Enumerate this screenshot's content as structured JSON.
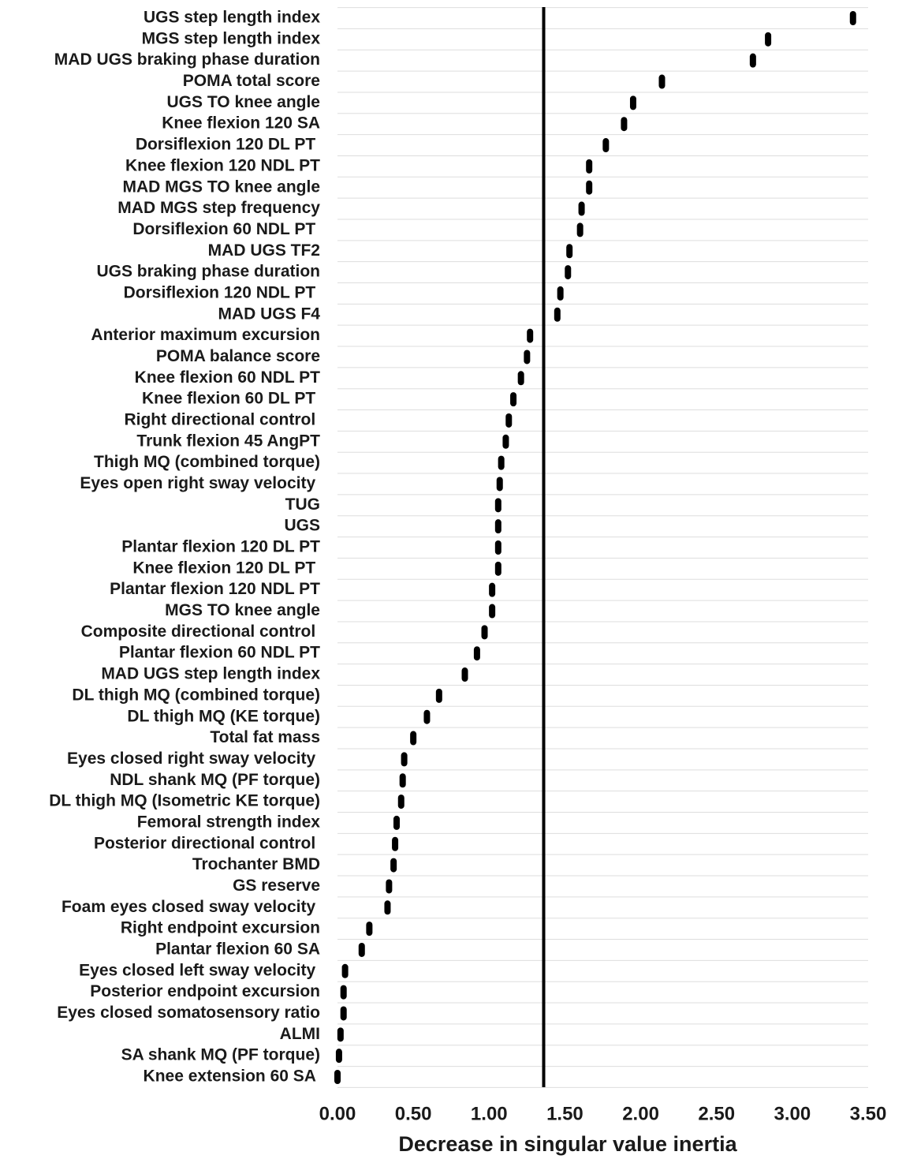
{
  "chart_data": {
    "type": "dot",
    "x_label": "Decrease in singular value inertia",
    "categories": [
      "UGS step length index",
      "MGS step length index",
      "MAD UGS braking phase duration",
      "POMA total score",
      "UGS TO knee angle",
      "Knee flexion 120 SA",
      "Dorsiflexion 120 DL PT ",
      "Knee flexion 120 NDL PT",
      "MAD MGS TO knee angle",
      "MAD MGS step frequency",
      "Dorsiflexion 60 NDL PT ",
      "MAD UGS TF2",
      "UGS braking phase duration",
      "Dorsiflexion 120 NDL PT ",
      "MAD UGS F4",
      "Anterior maximum excursion",
      "POMA balance score",
      "Knee flexion 60 NDL PT",
      "Knee flexion 60 DL PT ",
      "Right directional control ",
      "Trunk flexion 45 AngPT",
      "Thigh MQ (combined torque)",
      "Eyes open right sway velocity ",
      "TUG",
      "UGS",
      "Plantar flexion 120 DL PT",
      "Knee flexion 120 DL PT ",
      "Plantar flexion 120 NDL PT",
      "MGS TO knee angle",
      "Composite directional control ",
      "Plantar flexion 60 NDL PT",
      "MAD UGS step length index",
      "DL thigh MQ (combined torque)",
      "DL thigh MQ (KE torque)",
      "Total fat mass",
      "Eyes closed right sway velocity ",
      "NDL shank MQ (PF torque)",
      "DL thigh MQ (Isometric KE torque)",
      "Femoral strength index",
      "Posterior directional control ",
      "Trochanter BMD",
      "GS reserve",
      "Foam eyes closed sway velocity ",
      "Right endpoint excursion",
      "Plantar flexion 60 SA",
      "Eyes closed left sway velocity ",
      "Posterior endpoint excursion",
      "Eyes closed somatosensory ratio",
      "ALMI",
      "SA shank MQ (PF torque)",
      "Knee extension 60 SA "
    ],
    "values": [
      3.4,
      2.84,
      2.74,
      2.14,
      1.95,
      1.89,
      1.77,
      1.66,
      1.66,
      1.61,
      1.6,
      1.53,
      1.52,
      1.47,
      1.45,
      1.27,
      1.25,
      1.21,
      1.16,
      1.13,
      1.11,
      1.08,
      1.07,
      1.06,
      1.06,
      1.06,
      1.06,
      1.02,
      1.02,
      0.97,
      0.92,
      0.84,
      0.67,
      0.59,
      0.5,
      0.44,
      0.43,
      0.42,
      0.39,
      0.38,
      0.37,
      0.34,
      0.33,
      0.21,
      0.16,
      0.05,
      0.04,
      0.04,
      0.02,
      0.01,
      0.0
    ],
    "color": "#000000",
    "reference_line": 1.36,
    "xlim": [
      0,
      3.5
    ],
    "xticks": [
      {
        "value": 0,
        "label": "0.00"
      },
      {
        "value": 0.5,
        "label": "0.50"
      },
      {
        "value": 1,
        "label": "1.00"
      },
      {
        "value": 1.5,
        "label": "1.50"
      },
      {
        "value": 2,
        "label": "2.00"
      },
      {
        "value": 2.5,
        "label": "2.50"
      },
      {
        "value": 3,
        "label": "3.00"
      },
      {
        "value": 3.5,
        "label": "3.50"
      }
    ],
    "grid": true
  }
}
